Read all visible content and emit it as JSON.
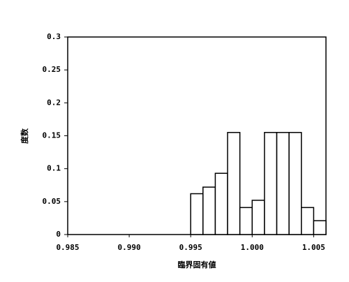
{
  "chart_data": {
    "type": "histogram",
    "x_label": "臨界固有値",
    "y_label": "度数",
    "bins": [
      0.985,
      0.986,
      0.987,
      0.988,
      0.989,
      0.99,
      0.991,
      0.992,
      0.993,
      0.994,
      0.995,
      0.996,
      0.997,
      0.998,
      0.999,
      1.0,
      1.001,
      1.002,
      1.003,
      1.004,
      1.005,
      1.006
    ],
    "values": [
      0,
      0,
      0,
      0,
      0,
      0,
      0,
      0,
      0,
      0,
      0.062,
      0.072,
      0.093,
      0.155,
      0.041,
      0.052,
      0.155,
      0.155,
      0.155,
      0.041,
      0.021
    ],
    "color": "#ffffff",
    "xlim": [
      0.985,
      1.006
    ],
    "xticks": [
      0.985,
      {
        "value": 0.99,
        "label": "0.990"
      },
      0.995,
      {
        "value": 1,
        "label": "1.000"
      },
      1.005
    ],
    "ylim": [
      0,
      0.3
    ],
    "yticks": [
      0,
      0.05,
      0.1,
      0.15,
      0.2,
      0.25,
      0.3
    ],
    "grid": false
  }
}
